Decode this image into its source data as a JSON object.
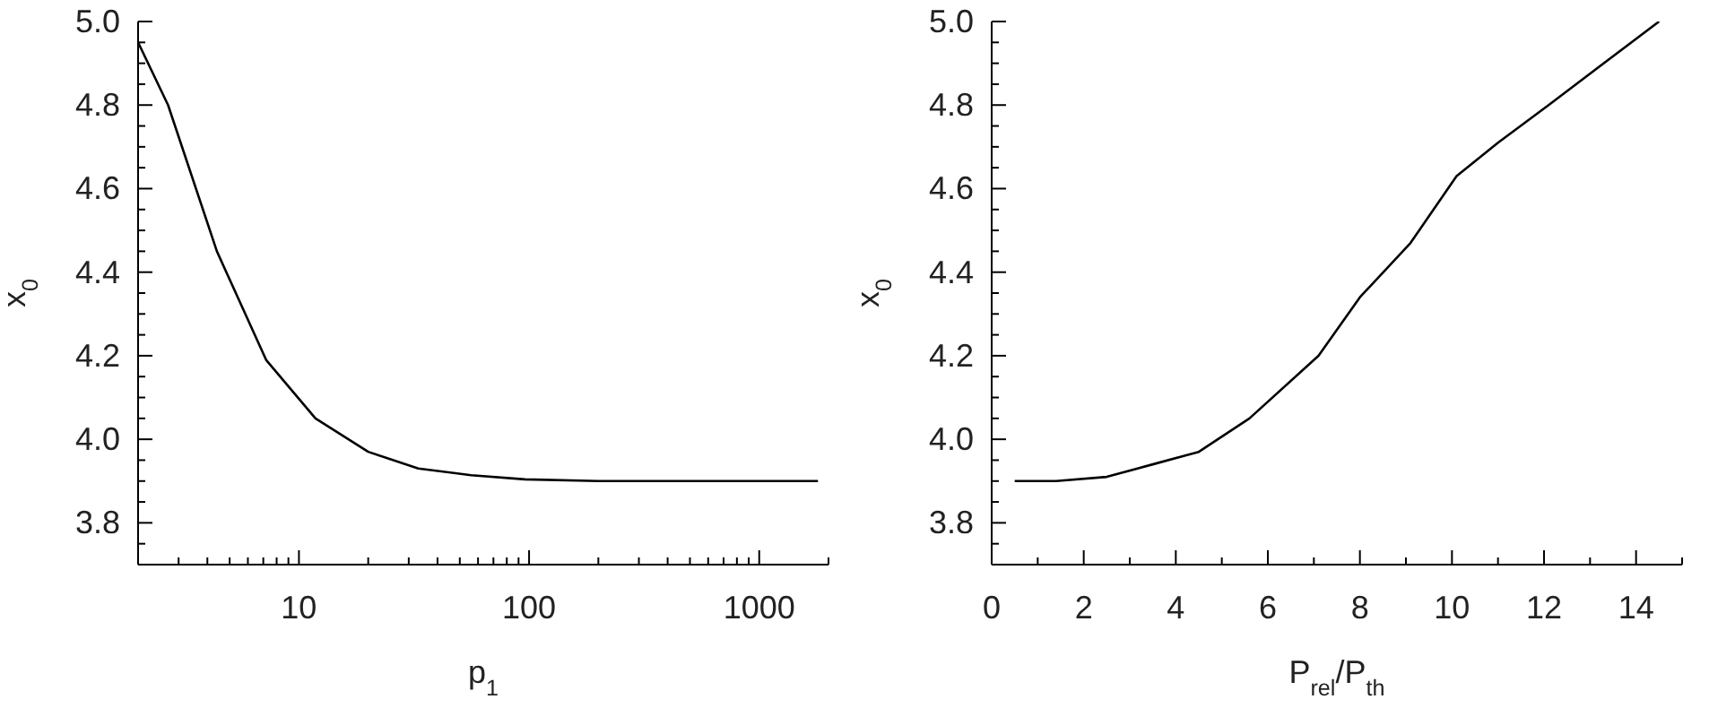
{
  "chart_data": [
    {
      "type": "line",
      "xlabel": "p$_{1}$",
      "ylabel": "x$_{0}$",
      "log": "x",
      "marker": "none",
      "color": "#000000",
      "x": [
        2,
        2.7,
        4.4,
        7.2,
        11.8,
        20,
        33,
        56,
        96,
        200,
        1800
      ],
      "values": [
        4.95,
        4.8,
        4.45,
        4.19,
        4.05,
        3.97,
        3.93,
        3.914,
        3.904,
        3.9,
        3.9
      ],
      "xlim": [
        2,
        2000
      ],
      "xticks": [
        {
          "value": 2,
          "label": null
        },
        {
          "value": 3,
          "label": null
        },
        {
          "value": 4,
          "label": null
        },
        {
          "value": 5,
          "label": null
        },
        {
          "value": 6,
          "label": null
        },
        {
          "value": 7,
          "label": null
        },
        {
          "value": 8,
          "label": null
        },
        {
          "value": 9,
          "label": null
        },
        10,
        {
          "value": 20,
          "label": null
        },
        {
          "value": 30,
          "label": null
        },
        {
          "value": 40,
          "label": null
        },
        {
          "value": 50,
          "label": null
        },
        {
          "value": 60,
          "label": null
        },
        {
          "value": 70,
          "label": null
        },
        {
          "value": 80,
          "label": null
        },
        {
          "value": 90,
          "label": null
        },
        100,
        {
          "value": 200,
          "label": null
        },
        {
          "value": 300,
          "label": null
        },
        {
          "value": 400,
          "label": null
        },
        {
          "value": 500,
          "label": null
        },
        {
          "value": 600,
          "label": null
        },
        {
          "value": 700,
          "label": null
        },
        {
          "value": 800,
          "label": null
        },
        {
          "value": 900,
          "label": null
        },
        1000,
        {
          "value": 2000,
          "label": null
        }
      ],
      "ylim": [
        3.7,
        5.0
      ],
      "yticks": [
        {
          "value": 3.7,
          "label": null
        },
        {
          "value": 3.75,
          "label": null
        },
        3.8,
        {
          "value": 3.85,
          "label": null
        },
        {
          "value": 3.9,
          "label": null
        },
        {
          "value": 3.95,
          "label": null
        },
        {
          "value": 4.0,
          "label": "4.0"
        },
        {
          "value": 4.05,
          "label": null
        },
        {
          "value": 4.1,
          "label": null
        },
        {
          "value": 4.15,
          "label": null
        },
        4.2,
        {
          "value": 4.25,
          "label": null
        },
        {
          "value": 4.3,
          "label": null
        },
        {
          "value": 4.35,
          "label": null
        },
        4.4,
        {
          "value": 4.45,
          "label": null
        },
        {
          "value": 4.5,
          "label": null
        },
        {
          "value": 4.55,
          "label": null
        },
        4.6,
        {
          "value": 4.65,
          "label": null
        },
        {
          "value": 4.7,
          "label": null
        },
        {
          "value": 4.75,
          "label": null
        },
        4.8,
        {
          "value": 4.85,
          "label": null
        },
        {
          "value": 4.9,
          "label": null
        },
        {
          "value": 4.95,
          "label": null
        },
        {
          "value": 5.0,
          "label": "5.0"
        }
      ]
    },
    {
      "type": "line",
      "xlabel": "P$_{rel}$/P$_{th}$",
      "ylabel": "x$_{0}$",
      "marker": "none",
      "color": "#000000",
      "x": [
        0.5,
        1.4,
        2.5,
        3.5,
        4.5,
        5.6,
        7.1,
        8.0,
        9.1,
        10.1,
        11.0,
        12.1,
        14.5
      ],
      "values": [
        3.9,
        3.9,
        3.91,
        3.94,
        3.97,
        4.05,
        4.2,
        4.34,
        4.47,
        4.63,
        4.71,
        4.8,
        5.0
      ],
      "xlim": [
        0,
        15
      ],
      "xticks": [
        0,
        {
          "value": 1,
          "label": null
        },
        2,
        {
          "value": 3,
          "label": null
        },
        4,
        {
          "value": 5,
          "label": null
        },
        6,
        {
          "value": 7,
          "label": null
        },
        8,
        {
          "value": 9,
          "label": null
        },
        10,
        {
          "value": 11,
          "label": null
        },
        12,
        {
          "value": 13,
          "label": null
        },
        14,
        {
          "value": 15,
          "label": null
        }
      ],
      "ylim": [
        3.7,
        5.0
      ],
      "yticks": [
        {
          "value": 3.7,
          "label": null
        },
        {
          "value": 3.75,
          "label": null
        },
        3.8,
        {
          "value": 3.85,
          "label": null
        },
        {
          "value": 3.9,
          "label": null
        },
        {
          "value": 3.95,
          "label": null
        },
        {
          "value": 4.0,
          "label": "4.0"
        },
        {
          "value": 4.05,
          "label": null
        },
        {
          "value": 4.1,
          "label": null
        },
        {
          "value": 4.15,
          "label": null
        },
        4.2,
        {
          "value": 4.25,
          "label": null
        },
        {
          "value": 4.3,
          "label": null
        },
        {
          "value": 4.35,
          "label": null
        },
        4.4,
        {
          "value": 4.45,
          "label": null
        },
        {
          "value": 4.5,
          "label": null
        },
        {
          "value": 4.55,
          "label": null
        },
        4.6,
        {
          "value": 4.65,
          "label": null
        },
        {
          "value": 4.7,
          "label": null
        },
        {
          "value": 4.75,
          "label": null
        },
        4.8,
        {
          "value": 4.85,
          "label": null
        },
        {
          "value": 4.9,
          "label": null
        },
        {
          "value": 4.95,
          "label": null
        },
        {
          "value": 5.0,
          "label": "5.0"
        }
      ]
    }
  ]
}
